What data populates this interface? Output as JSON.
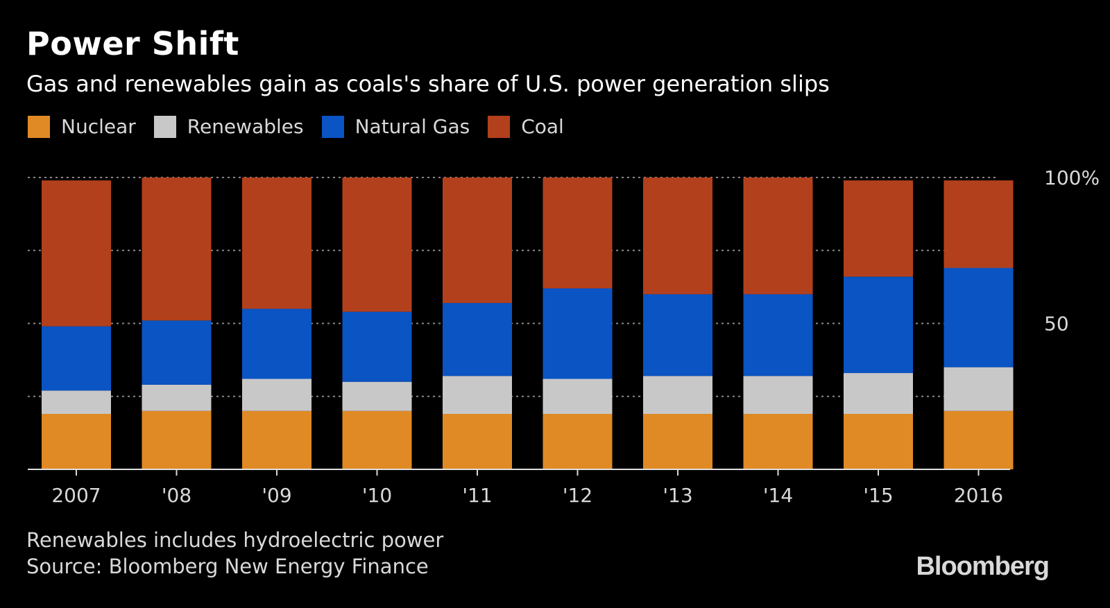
{
  "title": "Power Shift",
  "subtitle": "Gas and renewables gain as coals's share of U.S. power generation slips",
  "legend": [
    {
      "label": "Nuclear",
      "color": "#e08a25"
    },
    {
      "label": "Renewables",
      "color": "#c8c8c8"
    },
    {
      "label": "Natural Gas",
      "color": "#0a54c4"
    },
    {
      "label": "Coal",
      "color": "#b2401c"
    }
  ],
  "notes": {
    "line1": "Renewables includes hydroelectric power",
    "line2": "Source: Bloomberg New Energy Finance"
  },
  "brand": "Bloomberg",
  "chart_data": {
    "type": "bar",
    "stacked": true,
    "categories": [
      "2007",
      "'08",
      "'09",
      "'10",
      "'11",
      "'12",
      "'13",
      "'14",
      "'15",
      "2016"
    ],
    "series": [
      {
        "name": "Nuclear",
        "color": "#e08a25",
        "values": [
          19,
          20,
          20,
          20,
          19,
          19,
          19,
          19,
          19,
          20
        ]
      },
      {
        "name": "Renewables",
        "color": "#c8c8c8",
        "values": [
          8,
          9,
          11,
          10,
          13,
          12,
          13,
          13,
          14,
          15
        ]
      },
      {
        "name": "Natural Gas",
        "color": "#0a54c4",
        "values": [
          22,
          22,
          24,
          24,
          25,
          31,
          28,
          28,
          33,
          34
        ]
      },
      {
        "name": "Coal",
        "color": "#b2401c",
        "values": [
          50,
          49,
          45,
          46,
          43,
          38,
          40,
          40,
          33,
          30
        ]
      }
    ],
    "ylim": [
      0,
      100
    ],
    "y_ticks": [
      {
        "value": 100,
        "label": "100%"
      },
      {
        "value": 75,
        "label": ""
      },
      {
        "value": 50,
        "label": "50"
      },
      {
        "value": 25,
        "label": ""
      }
    ],
    "grid": true,
    "legend_position": "top-left",
    "axis_side": "right"
  }
}
